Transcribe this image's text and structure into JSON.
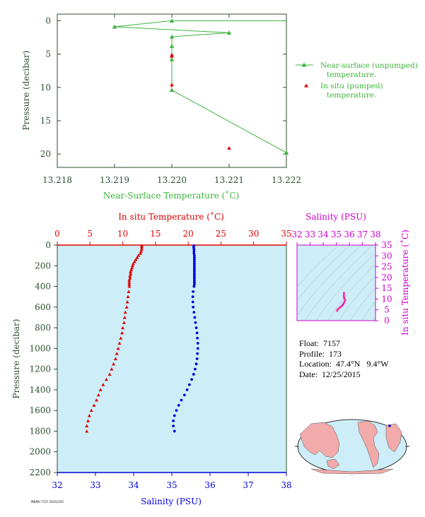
{
  "float_info": {
    "float_line": "Float:  7157",
    "profile_line": "Profile:  173",
    "location_line": "Location:  47.4°N   9.4°W",
    "date_line": "Date:  12/25/2015"
  },
  "footer_code": "MBARI 7157 20151225",
  "colors": {
    "green": "#3cb43c",
    "axis_green": "#2f4f2f",
    "red": "#e00000",
    "blue": "#0000dd",
    "magenta": "#cc00cc",
    "panel_bg": "#cdeef8",
    "land": "#f2aaaa"
  },
  "chart_data": [
    {
      "type": "line",
      "xlabel": "Near-Surface Temperature (˚C)",
      "ylabel": "Pressure (decibar)",
      "xlim": [
        13.218,
        13.222
      ],
      "ylim": [
        22,
        -1
      ],
      "x_ticks": [
        "13.218",
        "13.219",
        "13.220",
        "13.221",
        "13.222"
      ],
      "y_ticks": [
        "0",
        "5",
        "10",
        "15",
        "20"
      ],
      "legend_position": "right",
      "series": [
        {
          "name": "Near-surface (unpumped) temperature.",
          "x": [
            13.22,
            13.219,
            13.221,
            13.22,
            13.22,
            13.22,
            13.22,
            13.222
          ],
          "y": [
            0.0,
            0.9,
            1.8,
            2.4,
            3.8,
            5.8,
            10.4,
            19.8
          ]
        },
        {
          "name": "In situ (pumped) temperature.",
          "x": [
            13.22,
            13.22,
            13.22,
            13.221
          ],
          "y": [
            5.1,
            5.3,
            9.6,
            19.1
          ]
        }
      ],
      "extra_points": [
        {
          "x": 13.222,
          "y": 0.0
        }
      ],
      "legend_entries": [
        "Near-surface (unpumped) temperature.",
        "In situ (pumped) temperature."
      ]
    },
    {
      "type": "scatter",
      "top_xlabel": "In situ Temperature (˚C)",
      "bottom_xlabel": "Salinity (PSU)",
      "ylabel": "Pressure (decibar)",
      "temp_lim": [
        0,
        35
      ],
      "sal_lim": [
        32,
        38
      ],
      "ylim": [
        2200,
        0
      ],
      "temp_ticks": [
        "0",
        "5",
        "10",
        "15",
        "20",
        "25",
        "30",
        "35"
      ],
      "sal_ticks": [
        "32",
        "33",
        "34",
        "35",
        "36",
        "37",
        "38"
      ],
      "y_ticks": [
        "0",
        "200",
        "400",
        "600",
        "800",
        "1000",
        "1200",
        "1400",
        "1600",
        "1800",
        "2000",
        "2200"
      ],
      "temperature": {
        "pressure": [
          5,
          20,
          40,
          60,
          80,
          100,
          120,
          140,
          160,
          180,
          200,
          220,
          240,
          260,
          280,
          300,
          320,
          340,
          360,
          380,
          400,
          450,
          500,
          550,
          600,
          650,
          700,
          750,
          800,
          850,
          900,
          950,
          1000,
          1050,
          1100,
          1150,
          1200,
          1250,
          1300,
          1350,
          1400,
          1450,
          1500,
          1550,
          1600,
          1650,
          1700,
          1750,
          1800
        ],
        "values": [
          12.9,
          12.9,
          12.9,
          12.8,
          12.7,
          12.4,
          12.2,
          12.0,
          11.8,
          11.6,
          11.5,
          11.4,
          11.3,
          11.2,
          11.2,
          11.1,
          11.1,
          11.0,
          11.0,
          11.0,
          11.0,
          10.9,
          10.8,
          10.7,
          10.6,
          10.4,
          10.3,
          10.2,
          10.0,
          9.9,
          9.7,
          9.5,
          9.3,
          9.1,
          8.9,
          8.6,
          8.3,
          8.0,
          7.5,
          7.0,
          6.6,
          6.3,
          6.0,
          5.6,
          5.2,
          4.9,
          4.7,
          4.5,
          4.5
        ]
      },
      "salinity": {
        "pressure": [
          5,
          20,
          40,
          60,
          80,
          100,
          120,
          140,
          160,
          180,
          200,
          220,
          240,
          260,
          280,
          300,
          320,
          340,
          360,
          380,
          400,
          450,
          500,
          550,
          600,
          650,
          700,
          750,
          800,
          850,
          900,
          950,
          1000,
          1050,
          1100,
          1150,
          1200,
          1250,
          1300,
          1350,
          1400,
          1450,
          1500,
          1550,
          1600,
          1650,
          1700,
          1750,
          1800
        ],
        "values": [
          35.58,
          35.57,
          35.58,
          35.58,
          35.58,
          35.59,
          35.59,
          35.59,
          35.59,
          35.59,
          35.59,
          35.59,
          35.59,
          35.59,
          35.59,
          35.59,
          35.59,
          35.59,
          35.59,
          35.59,
          35.58,
          35.56,
          35.55,
          35.55,
          35.56,
          35.58,
          35.6,
          35.62,
          35.64,
          35.66,
          35.67,
          35.68,
          35.68,
          35.67,
          35.66,
          35.64,
          35.61,
          35.57,
          35.52,
          35.46,
          35.4,
          35.33,
          35.25,
          35.18,
          35.12,
          35.07,
          35.04,
          35.04,
          35.07
        ]
      }
    },
    {
      "type": "scatter",
      "top_xlabel": "Salinity (PSU)",
      "ylabel": "In situ Temperature (˚C)",
      "xlim": [
        32,
        38
      ],
      "ylim": [
        0,
        35
      ],
      "x_ticks": [
        "32",
        "33",
        "34",
        "35",
        "36",
        "37",
        "38"
      ],
      "y_ticks": [
        "0",
        "5",
        "10",
        "15",
        "20",
        "25",
        "30",
        "35"
      ],
      "salinity": [
        35.59,
        35.59,
        35.58,
        35.58,
        35.59,
        35.6,
        35.62,
        35.66,
        35.68,
        35.64,
        35.57,
        35.46,
        35.33,
        35.18,
        35.07,
        35.07
      ],
      "temperature": [
        12.9,
        12.4,
        11.6,
        11.2,
        11.0,
        10.8,
        10.4,
        10.0,
        9.5,
        8.9,
        8.0,
        7.0,
        6.3,
        5.6,
        4.9,
        4.5
      ]
    }
  ]
}
